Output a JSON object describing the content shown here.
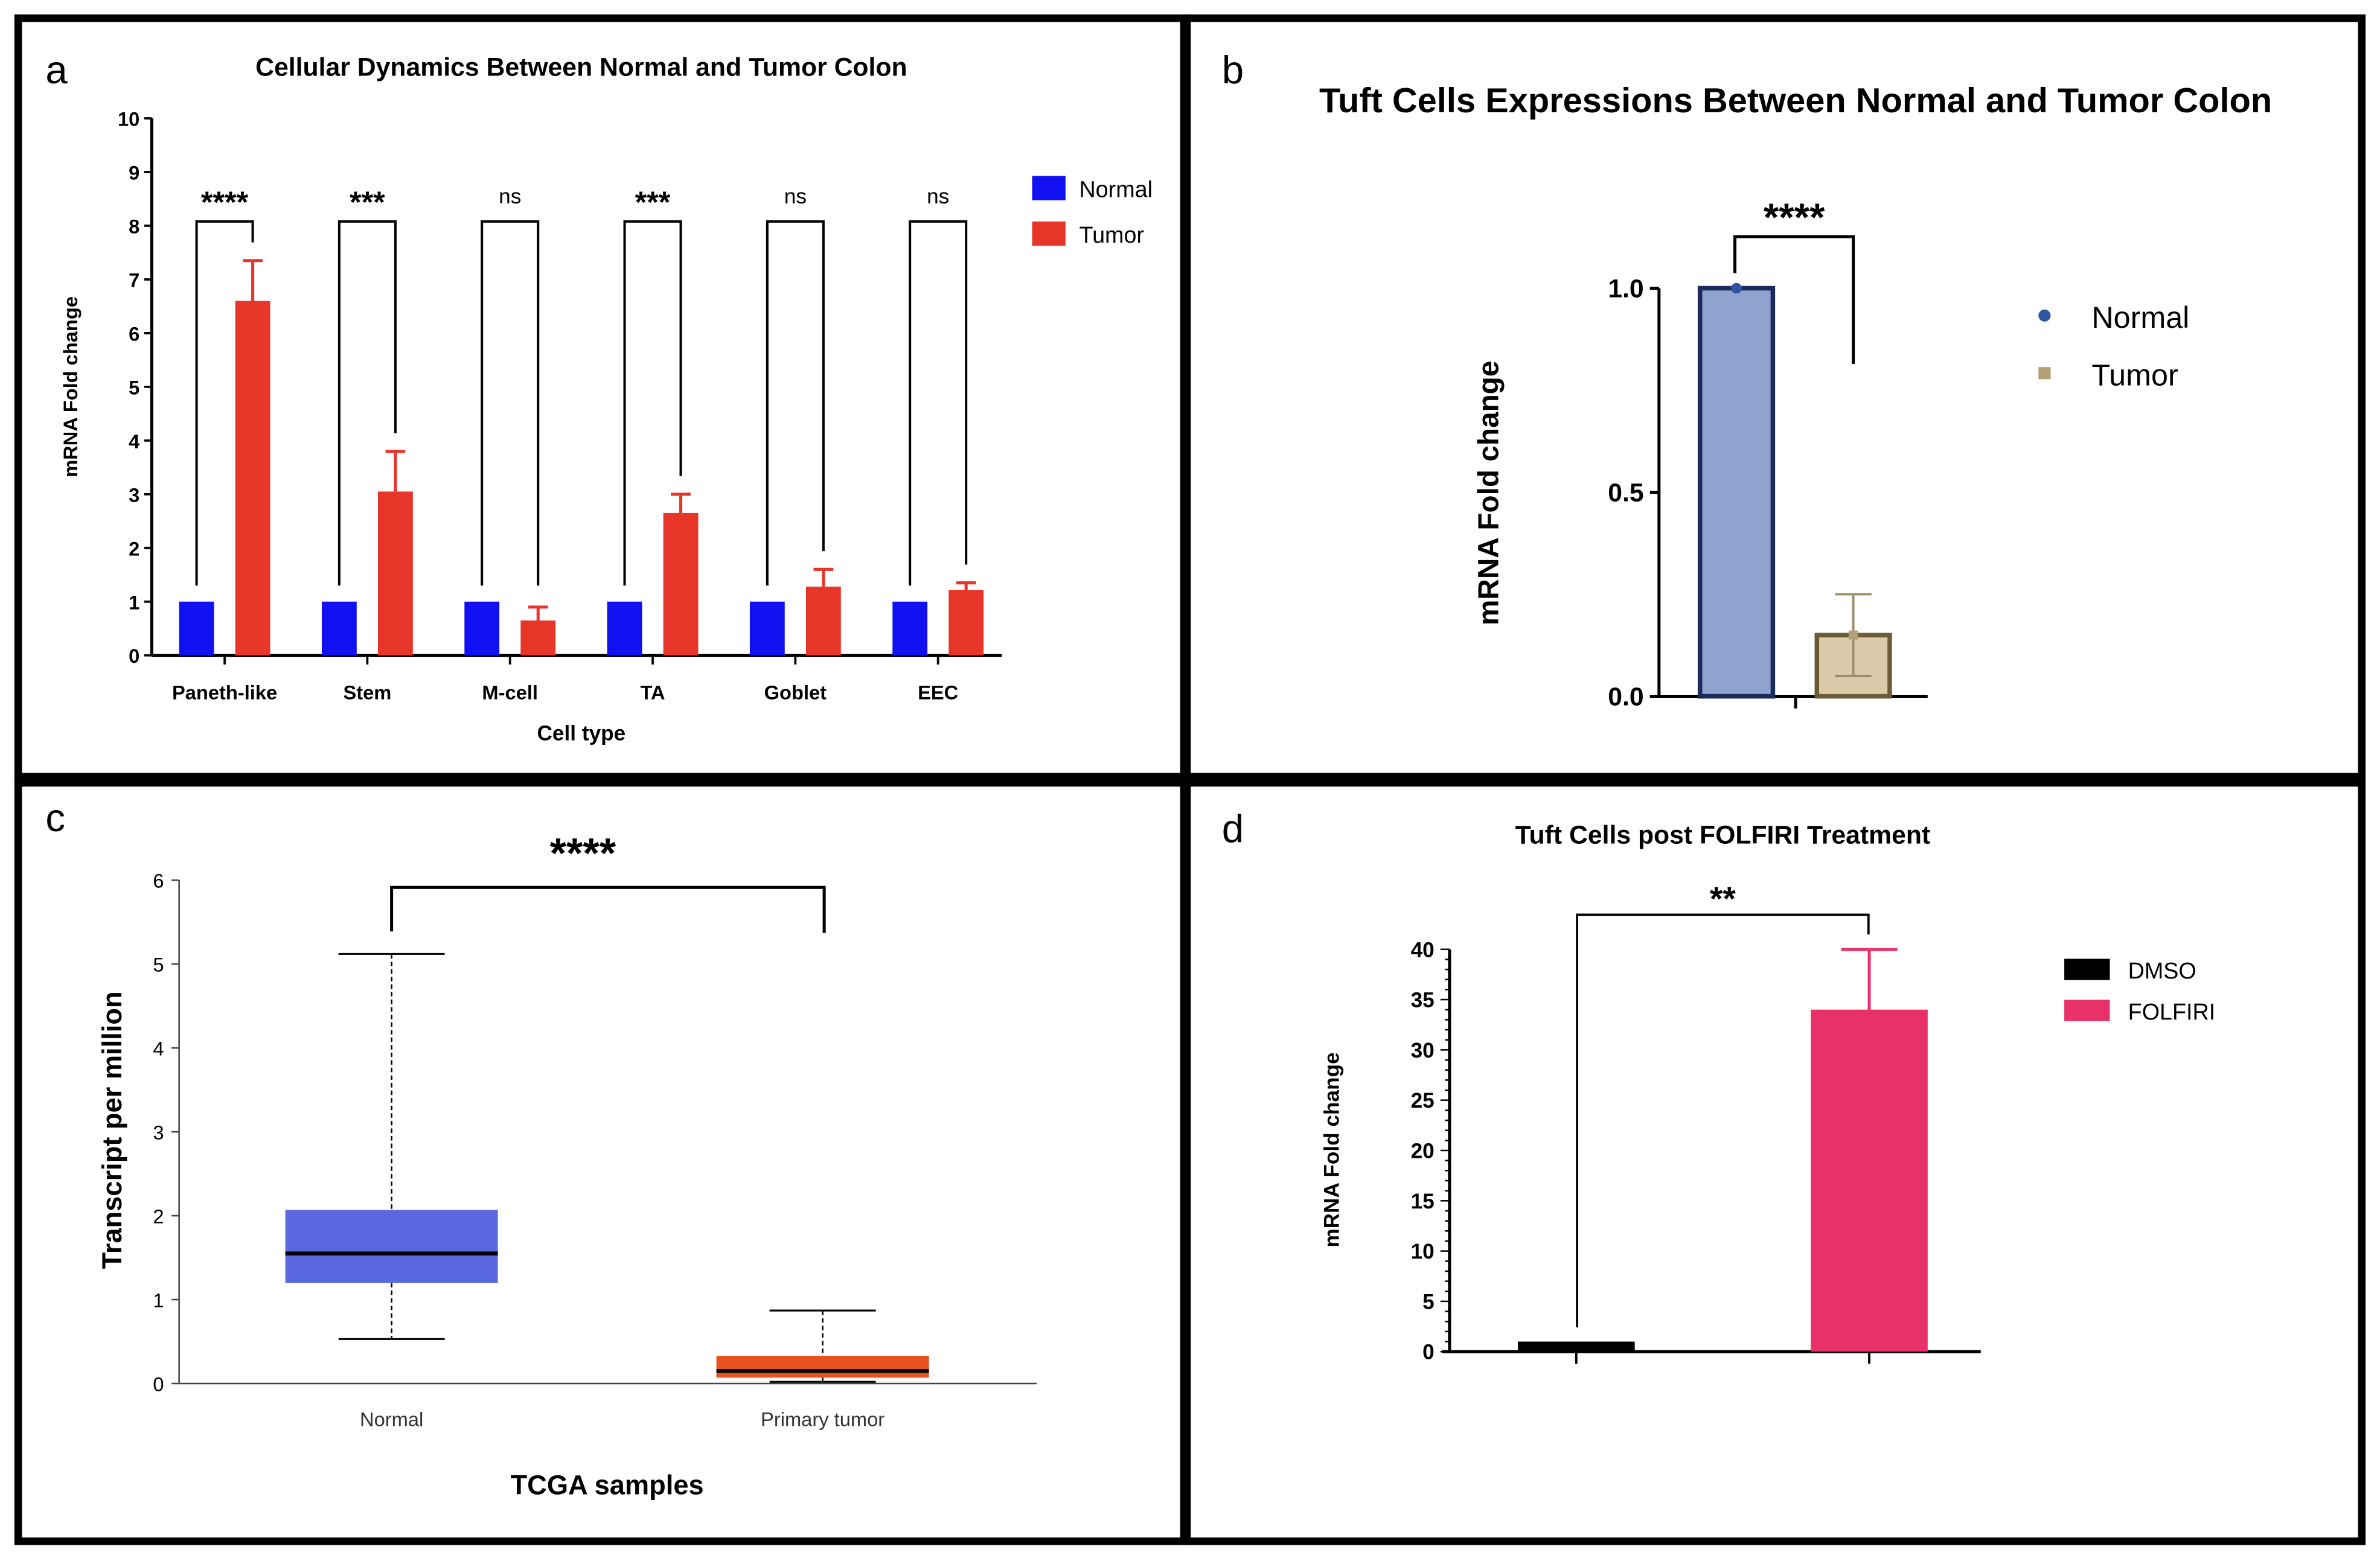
{
  "chart_data": [
    {
      "panel_label": "a",
      "type": "bar",
      "title": "Cellular Dynamics Between Normal and Tumor Colon",
      "xlabel": "Cell type",
      "ylabel": "mRNA Fold change",
      "ylim": [
        0,
        10
      ],
      "yticks": [
        "0",
        "1",
        "2",
        "3",
        "4",
        "5",
        "6",
        "7",
        "8",
        "9",
        "10"
      ],
      "categories": [
        "Paneth-like",
        "Stem",
        "M-cell",
        "TA",
        "Goblet",
        "EEC"
      ],
      "series": [
        {
          "name": "Normal",
          "color": "#1010f0",
          "values": [
            1,
            1,
            1,
            1,
            1,
            1
          ],
          "error_upper": [
            null,
            null,
            null,
            null,
            null,
            null
          ]
        },
        {
          "name": "Tumor",
          "color": "#e8352a",
          "values": [
            6.6,
            3.05,
            0.65,
            2.65,
            1.28,
            1.22
          ],
          "error_upper": [
            7.35,
            3.8,
            0.9,
            3.0,
            1.6,
            1.35
          ]
        }
      ],
      "significance": [
        "****",
        "***",
        "ns",
        "***",
        "ns",
        "ns"
      ],
      "legend": "right"
    },
    {
      "panel_label": "b",
      "type": "bar",
      "title": "Tuft Cells Expressions Between Normal and Tumor Colon",
      "xlabel": "",
      "ylabel": "mRNA Fold change",
      "ylim": [
        0,
        1.0
      ],
      "yticks": [
        "0.0",
        "0.5",
        "1.0"
      ],
      "categories": [
        "Normal",
        "Tumor"
      ],
      "values": [
        1.0,
        0.15
      ],
      "error": [
        [
          1.0,
          1.0
        ],
        [
          0.05,
          0.25
        ]
      ],
      "colors": [
        "#8fa3cf",
        "#dccbab"
      ],
      "stroke_colors": [
        "#1d2a5c",
        "#6e5c38"
      ],
      "marker_colors": [
        "#2f55a4",
        "#b4a077"
      ],
      "significance": "****",
      "legend_items": [
        "Normal",
        "Tumor"
      ],
      "legend": "right"
    },
    {
      "panel_label": "c",
      "type": "box",
      "title": "",
      "xlabel": "TCGA samples",
      "ylabel": "Transcript per million",
      "ylim": [
        0,
        6
      ],
      "yticks": [
        "0",
        "1",
        "2",
        "3",
        "4",
        "5",
        "6"
      ],
      "categories": [
        "Normal",
        "Primary tumor"
      ],
      "boxes": [
        {
          "min": 0.53,
          "q1": 1.2,
          "median": 1.55,
          "q3": 2.07,
          "max": 5.12,
          "color": "#5a69e0"
        },
        {
          "min": 0.02,
          "q1": 0.07,
          "median": 0.15,
          "q3": 0.33,
          "max": 0.87,
          "color": "#e8501e"
        }
      ],
      "significance": "****"
    },
    {
      "panel_label": "d",
      "type": "bar",
      "title": "Tuft Cells post FOLFIRI Treatment",
      "xlabel": "",
      "ylabel": "mRNA Fold change",
      "ylim": [
        0,
        40
      ],
      "yticks": [
        "0",
        "5",
        "10",
        "15",
        "20",
        "25",
        "30",
        "35",
        "40"
      ],
      "categories": [
        "DMSO",
        "FOLFIRI"
      ],
      "values": [
        1,
        34
      ],
      "error_upper": [
        null,
        40
      ],
      "colors": [
        "#000000",
        "#e8306a"
      ],
      "significance": "**",
      "legend_items": [
        "DMSO",
        "FOLFIRI"
      ],
      "legend": "right"
    }
  ]
}
